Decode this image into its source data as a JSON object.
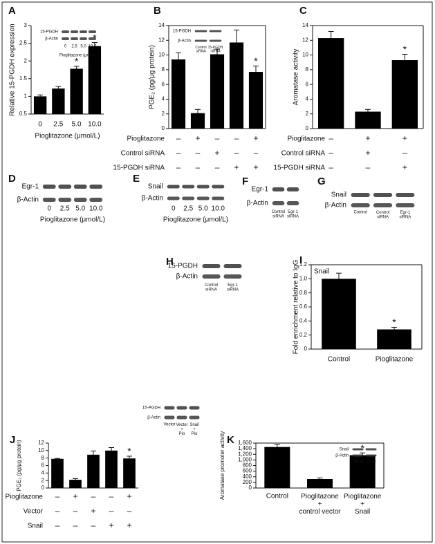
{
  "chart_data": [
    {
      "panel": "A",
      "type": "bar",
      "ylabel": "Relative 15-PGDH expression",
      "xlabel": "Pioglitazone (μmol/L)",
      "categories": [
        "0",
        "2.5",
        "5.0",
        "10.0"
      ],
      "values": [
        1.0,
        1.22,
        1.78,
        2.42
      ],
      "errors": [
        0.04,
        0.06,
        0.07,
        0.1
      ],
      "significance": [
        null,
        null,
        "*",
        "*"
      ],
      "color": "#000000",
      "ylim": [
        0.5,
        3
      ],
      "yticks": [
        0.5,
        1,
        1.5,
        2,
        2.5,
        3
      ],
      "inset": {
        "rows": [
          "15-PGDH",
          "β-Actin"
        ],
        "lanes": [
          "0",
          "2.5",
          "5.0",
          "10.0"
        ],
        "xlabel": "Pioglitazone (μmol/L)"
      }
    },
    {
      "panel": "B",
      "type": "bar",
      "ylabel": "PGE₂ (pg/μg protein)",
      "values": [
        9.4,
        2.1,
        10.1,
        11.7,
        7.7
      ],
      "errors": [
        0.9,
        0.5,
        0.7,
        1.7,
        0.8
      ],
      "significance": [
        null,
        null,
        null,
        null,
        "*"
      ],
      "color": "#000000",
      "ylim": [
        0,
        14
      ],
      "yticks": [
        0,
        2,
        4,
        6,
        8,
        10,
        12,
        14
      ],
      "conditions": [
        {
          "name": "Pioglitazone",
          "signs": [
            "–",
            "+",
            "–",
            "–",
            "+"
          ]
        },
        {
          "name": "Control siRNA",
          "signs": [
            "–",
            "–",
            "+",
            "–",
            "–"
          ]
        },
        {
          "name": "15-PGDH siRNA",
          "signs": [
            "–",
            "–",
            "–",
            "+",
            "+"
          ]
        }
      ],
      "inset": {
        "rows": [
          "15-PGDH",
          "β-Actin"
        ],
        "lanes": [
          "Control\nsiRNA",
          "15-PGDH\nsiRNA"
        ]
      }
    },
    {
      "panel": "C",
      "type": "bar",
      "ylabel": "Aromatase activity",
      "values": [
        12.3,
        2.3,
        9.3
      ],
      "errors": [
        0.9,
        0.3,
        0.8
      ],
      "significance": [
        null,
        null,
        "*"
      ],
      "color": "#000000",
      "ylim": [
        0,
        14
      ],
      "yticks": [
        0,
        2,
        4,
        6,
        8,
        10,
        12,
        14
      ],
      "conditions": [
        {
          "name": "Pioglitazone",
          "signs": [
            "–",
            "+",
            "+"
          ]
        },
        {
          "name": "Control siRNA",
          "signs": [
            "–",
            "+",
            "–"
          ]
        },
        {
          "name": "15-PGDH siRNA",
          "signs": [
            "–",
            "–",
            "+"
          ]
        }
      ]
    },
    {
      "panel": "I",
      "type": "bar",
      "title": "Snail",
      "ylabel": "Fold enrichment relative to IgG",
      "categories": [
        "Control",
        "Pioglitazone"
      ],
      "values": [
        1.0,
        0.28
      ],
      "errors": [
        0.08,
        0.03
      ],
      "significance": [
        null,
        "*"
      ],
      "color": "#000000",
      "ylim": [
        0,
        1.2
      ],
      "yticks": [
        0,
        0.2,
        0.4,
        0.6,
        0.8,
        {
          "value": 1,
          "label": "1.0"
        },
        1.2
      ]
    },
    {
      "panel": "J",
      "type": "bar",
      "ylabel": "PGE₂ (pg/μg protein)",
      "values": [
        7.8,
        2.2,
        8.9,
        10.0,
        7.9
      ],
      "errors": [
        0.1,
        0.3,
        1.0,
        0.8,
        0.6
      ],
      "significance": [
        null,
        null,
        null,
        null,
        "*"
      ],
      "color": "#000000",
      "ylim": [
        0,
        12
      ],
      "yticks": [
        0,
        2,
        4,
        6,
        8,
        10,
        12
      ],
      "conditions": [
        {
          "name": "Pioglitazone",
          "signs": [
            "–",
            "+",
            "–",
            "–",
            "+"
          ]
        },
        {
          "name": "Vector",
          "signs": [
            "–",
            "–",
            "+",
            "–",
            "–"
          ]
        },
        {
          "name": "Snail",
          "signs": [
            "–",
            "–",
            "–",
            "+",
            "+"
          ]
        }
      ]
    },
    {
      "panel": "K",
      "type": "bar",
      "ylabel": "Aromatase promoter activity",
      "categories": [
        "Control",
        "Pioglitazone\n+\ncontrol vector",
        "Pioglitazone\n+\nSnail"
      ],
      "values": [
        1460,
        320,
        1170
      ],
      "errors": [
        90,
        40,
        80
      ],
      "significance": [
        null,
        null,
        "*"
      ],
      "color": "#000000",
      "ylim": [
        0,
        1600
      ],
      "yticks": [
        0,
        200,
        400,
        600,
        800,
        {
          "value": 1000,
          "label": "1,000"
        },
        {
          "value": 1200,
          "label": "1,200"
        },
        {
          "value": 1400,
          "label": "1,400"
        },
        {
          "value": 1600,
          "label": "1,600"
        }
      ],
      "inset": {
        "rows": [
          "Snail",
          "β-Actin"
        ],
        "lanes": [
          "Vector",
          "Snail"
        ]
      }
    }
  ],
  "blots": [
    {
      "panel": "D",
      "rows": [
        "Egr-1",
        "β-Actin"
      ],
      "lanes": [
        "0",
        "2.5",
        "5.0",
        "10.0"
      ],
      "xlabel": "Pioglitazone (μmol/L)"
    },
    {
      "panel": "E",
      "rows": [
        "Snail",
        "β-Actin"
      ],
      "lanes": [
        "0",
        "2.5",
        "5.0",
        "10.0"
      ],
      "xlabel": "Pioglitazone (μmol/L)"
    },
    {
      "panel": "F",
      "rows": [
        "Egr-1",
        "β-Actin"
      ],
      "lanes": [
        "Control\nsiRNA",
        "Egr-1\nsiRNA"
      ]
    },
    {
      "panel": "G",
      "rows": [
        "Snail",
        "β-Actin"
      ],
      "lanes": [
        "Control",
        "Control\nsiRNA",
        "Egr-1\nsiRNA"
      ]
    },
    {
      "panel": "H",
      "rows": [
        "15-PGDH",
        "β-Actin"
      ],
      "lanes": [
        "Control\nsiRNA",
        "Egr-1\nsiRNA"
      ]
    },
    {
      "rows": [
        "15-PGDH",
        "β-Actin"
      ],
      "lanes": [
        "Vector",
        "Vector\n+\nPio",
        "Snail\n+\nPio"
      ]
    }
  ]
}
